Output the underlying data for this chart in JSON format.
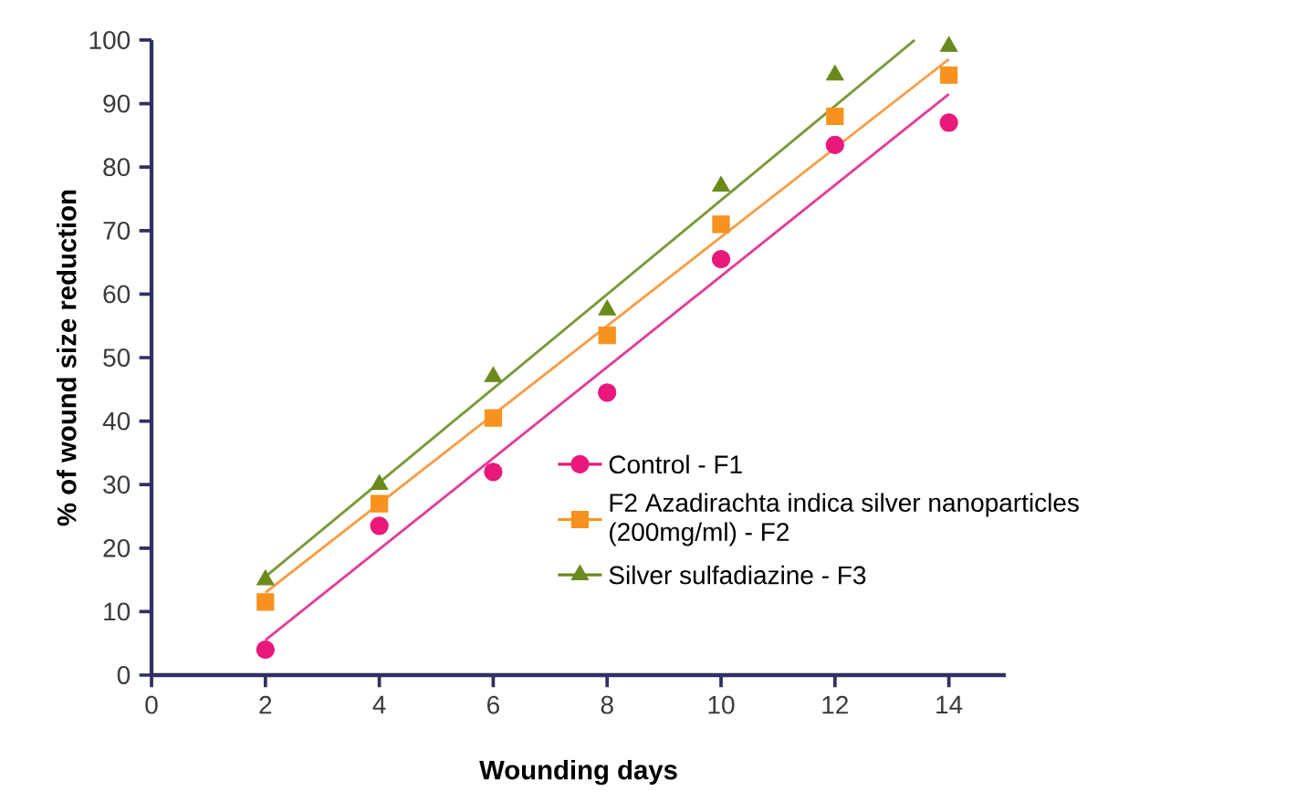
{
  "chart_data": {
    "type": "scatter",
    "xlabel": "Wounding days",
    "ylabel": "% of wound size reduction",
    "x": [
      2,
      4,
      6,
      8,
      10,
      12,
      14
    ],
    "series": [
      {
        "name": "Control - F1",
        "color": "#e8197b",
        "marker": "circle",
        "values": [
          4,
          23.5,
          32,
          44.5,
          65.5,
          83.5,
          87
        ]
      },
      {
        "name": "F2 Azadirachta indica silver nanoparticles (200mg/ml) - F2",
        "color": "#f7921e",
        "marker": "square",
        "values": [
          11.5,
          27,
          40.5,
          53.5,
          71,
          88,
          94.5
        ]
      },
      {
        "name": "Silver sulfadiazine - F3",
        "color": "#6b8a1c",
        "marker": "triangle",
        "values": [
          15,
          30,
          47,
          57.5,
          77,
          94.5,
          99
        ]
      },
      {
        "type": "line",
        "color": "#e0409a",
        "x": [
          2,
          14
        ],
        "values": [
          5.5,
          91.5
        ]
      },
      {
        "type": "line",
        "color": "#f5a04a",
        "x": [
          2,
          14
        ],
        "values": [
          13,
          97
        ]
      },
      {
        "type": "line",
        "color": "#7a9a3a",
        "x": [
          2,
          13.4
        ],
        "values": [
          15.5,
          100
        ]
      }
    ],
    "xlim": [
      0,
      15
    ],
    "ylim": [
      0,
      100
    ],
    "xticks": [
      0,
      2,
      4,
      6,
      8,
      10,
      12,
      14
    ],
    "yticks": [
      0,
      10,
      20,
      30,
      40,
      50,
      60,
      70,
      80,
      90,
      100
    ],
    "legend": "right",
    "grid": false
  }
}
